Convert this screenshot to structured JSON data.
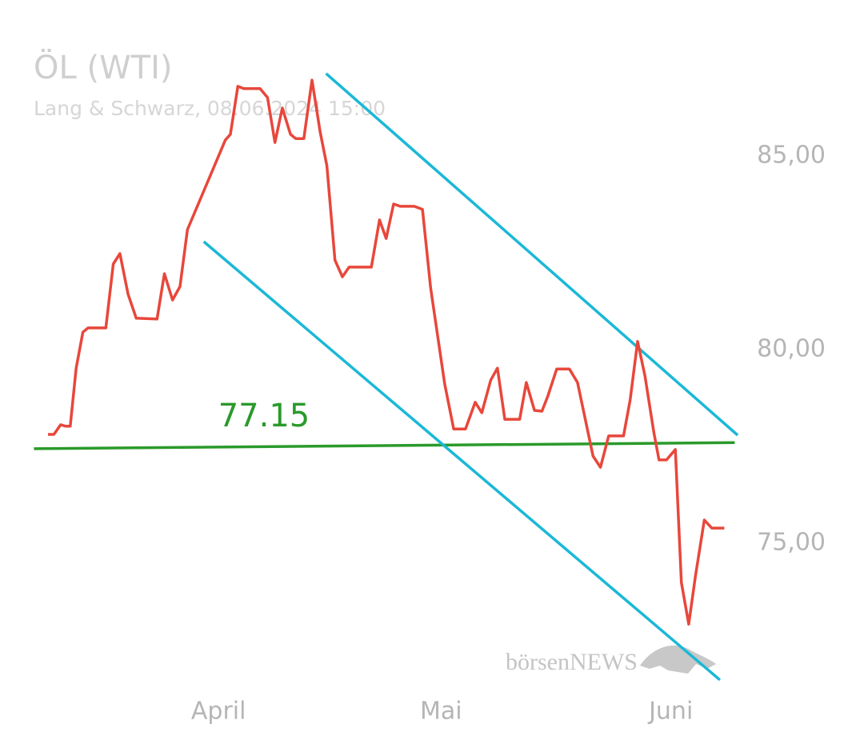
{
  "chart_data": {
    "type": "line",
    "title": "ÖL (WTI)",
    "subtitle": "Lang & Schwarz, 08.06.2024 15:00",
    "xlim": [
      -2,
      100
    ],
    "ylim": [
      70,
      89
    ],
    "xticks": [
      {
        "value": 23,
        "label": "April"
      },
      {
        "value": 53,
        "label": "Mai"
      },
      {
        "value": 84,
        "label": "Juni"
      }
    ],
    "yticks": [
      {
        "value": 75,
        "label": "75,00"
      },
      {
        "value": 80,
        "label": "80,00"
      },
      {
        "value": 85,
        "label": "85,00"
      }
    ],
    "series": [
      {
        "color": "#e8473b",
        "x": [
          0,
          0.8,
          1.7,
          2.4,
          3.0,
          3.8,
          4.7,
          5.4,
          7.8,
          8.8,
          9.7,
          10.8,
          11.9,
          14.7,
          15.7,
          16.8,
          17.8,
          18.8,
          23.9,
          24.6,
          25.6,
          26.4,
          28.6,
          29.6,
          30.6,
          31.6,
          32.7,
          33.4,
          34.5,
          35.6,
          36.7,
          37.6,
          38.7,
          39.7,
          40.6,
          43.6,
          44.7,
          45.6,
          46.6,
          47.5,
          49.4,
          50.5,
          51.6,
          53.5,
          54.7,
          56.3,
          57.6,
          58.5,
          59.7,
          60.6,
          61.6,
          63.6,
          64.5,
          65.6,
          66.6,
          67.4,
          68.6,
          70.3,
          71.4,
          73.5,
          74.5,
          75.6,
          77.6,
          78.5,
          79.5,
          80.5,
          81.7,
          82.4,
          83.4,
          84.6,
          85.4,
          86.4,
          87.3,
          88.5,
          89.5,
          91.2
        ],
        "values": [
          77.81,
          77.81,
          78.06,
          78.02,
          78.02,
          79.52,
          80.45,
          80.56,
          80.56,
          82.21,
          82.48,
          81.43,
          80.81,
          80.79,
          81.96,
          81.28,
          81.63,
          83.1,
          85.41,
          85.56,
          86.8,
          86.74,
          86.74,
          86.51,
          85.35,
          86.24,
          85.56,
          85.45,
          85.45,
          86.96,
          85.62,
          84.75,
          82.31,
          81.88,
          82.13,
          82.13,
          83.35,
          82.87,
          83.76,
          83.7,
          83.7,
          83.62,
          81.59,
          79.11,
          77.95,
          77.95,
          78.64,
          78.37,
          79.21,
          79.52,
          78.2,
          78.2,
          79.15,
          78.43,
          78.41,
          78.8,
          79.5,
          79.5,
          79.15,
          77.25,
          76.96,
          77.77,
          77.77,
          78.7,
          80.21,
          79.32,
          77.85,
          77.15,
          77.15,
          77.42,
          73.99,
          72.91,
          74.15,
          75.6,
          75.39,
          75.39
        ]
      }
    ],
    "lines": [
      {
        "color": "#2a9a2a",
        "x": [
          -1.9,
          92.6
        ],
        "values": [
          77.44,
          77.6
        ],
        "label": "77.15"
      },
      {
        "color": "#1bb8d6",
        "x": [
          37.5,
          93.0
        ],
        "values": [
          87.13,
          77.79
        ]
      },
      {
        "color": "#1bb8d6",
        "x": [
          21.0,
          90.6
        ],
        "values": [
          82.79,
          71.47
        ]
      }
    ],
    "watermark": "börsenNEWS"
  }
}
